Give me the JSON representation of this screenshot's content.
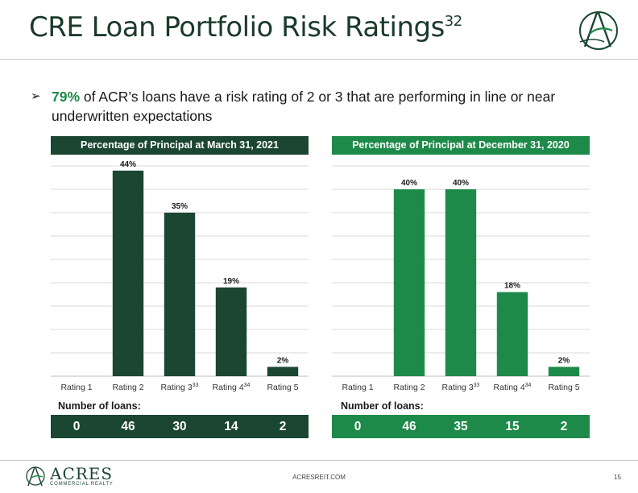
{
  "slide": {
    "title": "CRE Loan Portfolio Risk Ratings",
    "title_superscript": "32",
    "bullet_arrow": "➢",
    "bullet_highlight": "79%",
    "bullet_rest": " of ACR’s loans have a risk rating of 2 or 3 that are performing in line or near underwritten expectations",
    "accent_color": "#1e8a49",
    "dark_color": "#1b4632"
  },
  "chart_data": [
    {
      "type": "bar",
      "title": "Percentage of Principal at March 31, 2021",
      "categories": [
        "Rating 1",
        "Rating 2",
        "Rating 3",
        "Rating 4",
        "Rating 5"
      ],
      "category_superscripts": [
        "",
        "",
        "33",
        "34",
        ""
      ],
      "values": [
        0,
        44,
        35,
        19,
        2
      ],
      "data_labels": [
        "",
        "44%",
        "35%",
        "19%",
        "2%"
      ],
      "ylim": [
        0,
        45
      ],
      "grid": true,
      "bar_color": "#1b4632",
      "loans_label": "Number of loans:",
      "loans": [
        "0",
        "46",
        "30",
        "14",
        "2"
      ]
    },
    {
      "type": "bar",
      "title": "Percentage of Principal at December 31, 2020",
      "categories": [
        "Rating 1",
        "Rating 2",
        "Rating 3",
        "Rating 4",
        "Rating 5"
      ],
      "category_superscripts": [
        "",
        "",
        "33",
        "34",
        ""
      ],
      "values": [
        0,
        40,
        40,
        18,
        2
      ],
      "data_labels": [
        "",
        "40%",
        "40%",
        "18%",
        "2%"
      ],
      "ylim": [
        0,
        45
      ],
      "grid": true,
      "bar_color": "#1e8a49",
      "loans_label": "Number of loans:",
      "loans": [
        "0",
        "46",
        "35",
        "15",
        "2"
      ]
    }
  ],
  "footer": {
    "brand": "ACRES",
    "brand_sub": "COMMERCIAL REALTY",
    "url": "ACRESREIT.COM",
    "page": "15"
  }
}
